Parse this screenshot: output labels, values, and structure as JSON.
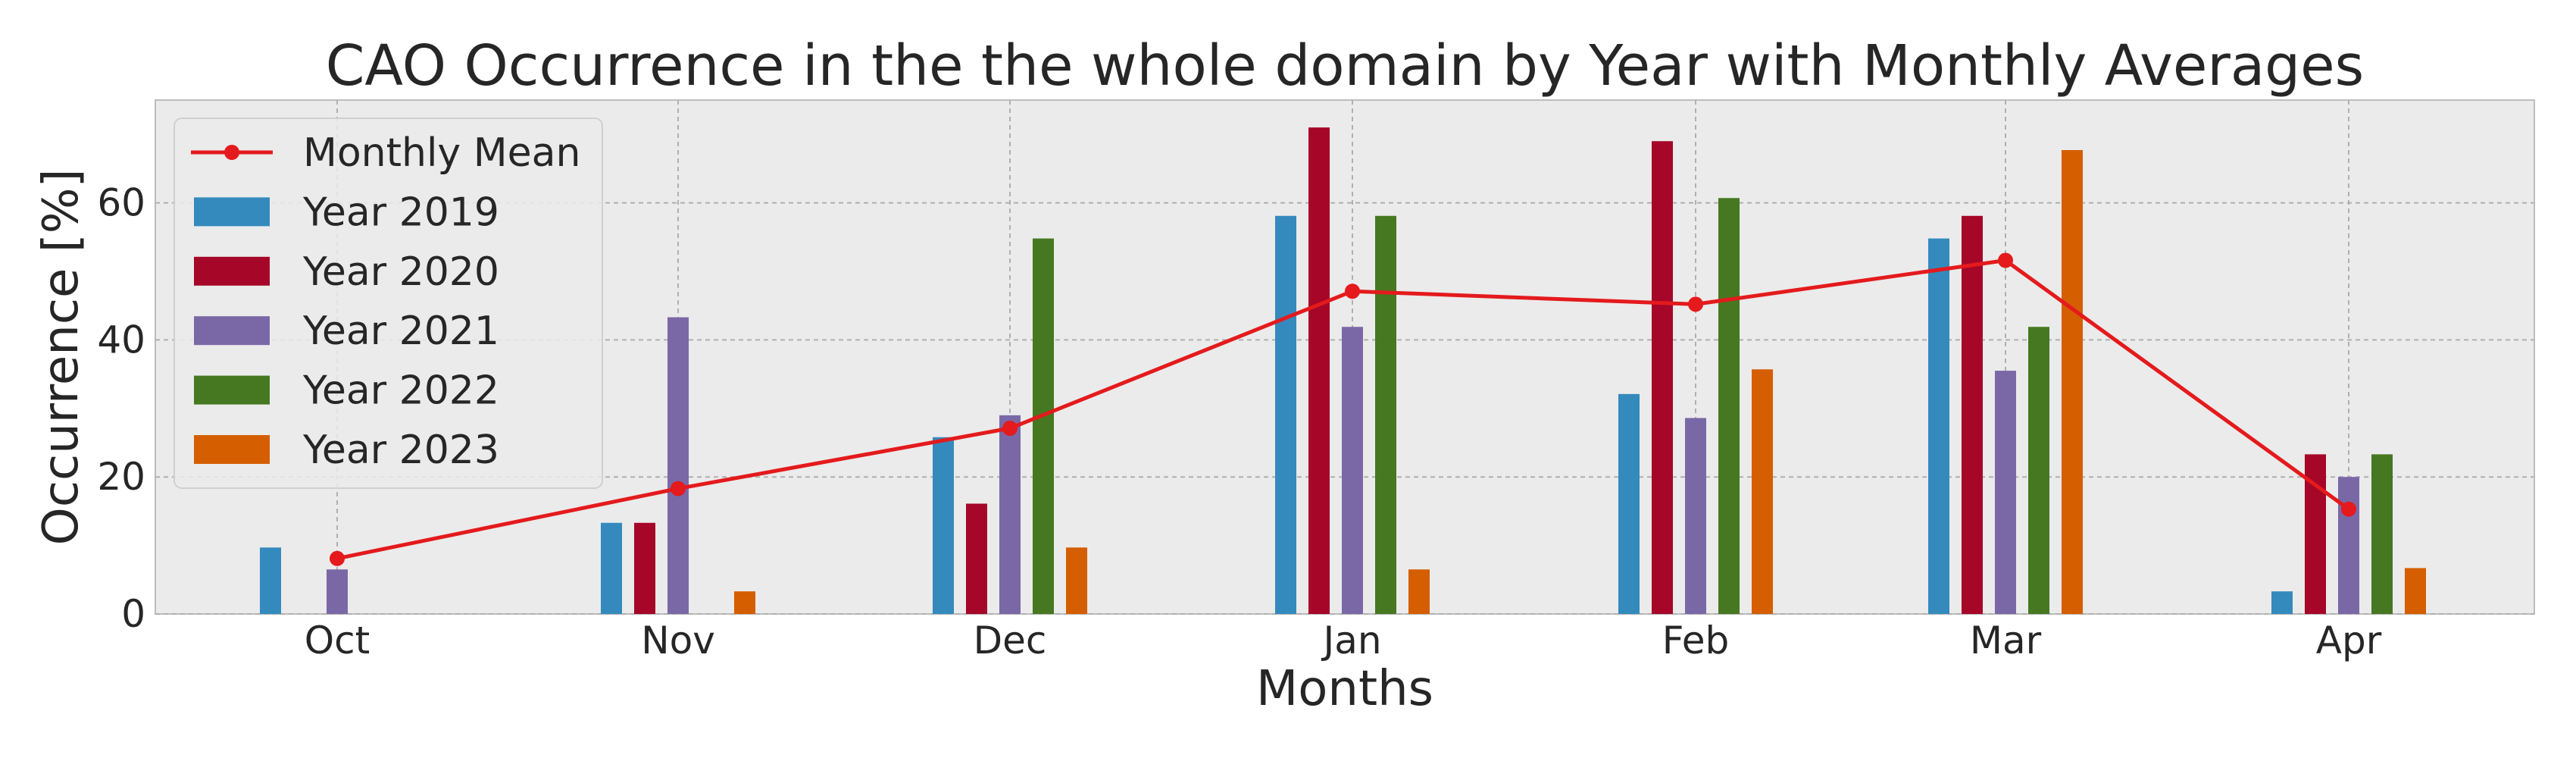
{
  "chart_data": {
    "type": "bar",
    "title": "CAO Occurrence in the the whole domain by Year with Monthly Averages",
    "xlabel": "Months",
    "ylabel": "Occurrence [%]",
    "categories": [
      "Oct",
      "Nov",
      "Dec",
      "Jan",
      "Feb",
      "Mar",
      "Apr"
    ],
    "ylim": [
      0,
      75
    ],
    "yticks": [
      0,
      20,
      40,
      60
    ],
    "grid": true,
    "legend_position": "top-left",
    "series": [
      {
        "name": "Year 2019",
        "color": "#348ABD",
        "values": [
          9.7,
          13.3,
          25.8,
          58.1,
          32.1,
          54.8,
          3.3
        ]
      },
      {
        "name": "Year 2020",
        "color": "#A60628",
        "values": [
          null,
          13.3,
          16.1,
          71.0,
          69.0,
          58.1,
          23.3
        ]
      },
      {
        "name": "Year 2021",
        "color": "#7A68A6",
        "values": [
          6.5,
          43.3,
          29.0,
          41.9,
          28.6,
          35.5,
          20.0
        ]
      },
      {
        "name": "Year 2022",
        "color": "#467821",
        "values": [
          null,
          null,
          54.8,
          58.1,
          60.7,
          41.9,
          23.3
        ]
      },
      {
        "name": "Year 2023",
        "color": "#D55E00",
        "values": [
          null,
          3.3,
          9.7,
          6.5,
          35.7,
          67.7,
          6.7
        ]
      }
    ],
    "line": {
      "name": "Monthly Mean",
      "color": "#E41A1C",
      "values": [
        8.1,
        18.3,
        27.1,
        47.1,
        45.2,
        51.6,
        15.3
      ]
    }
  }
}
